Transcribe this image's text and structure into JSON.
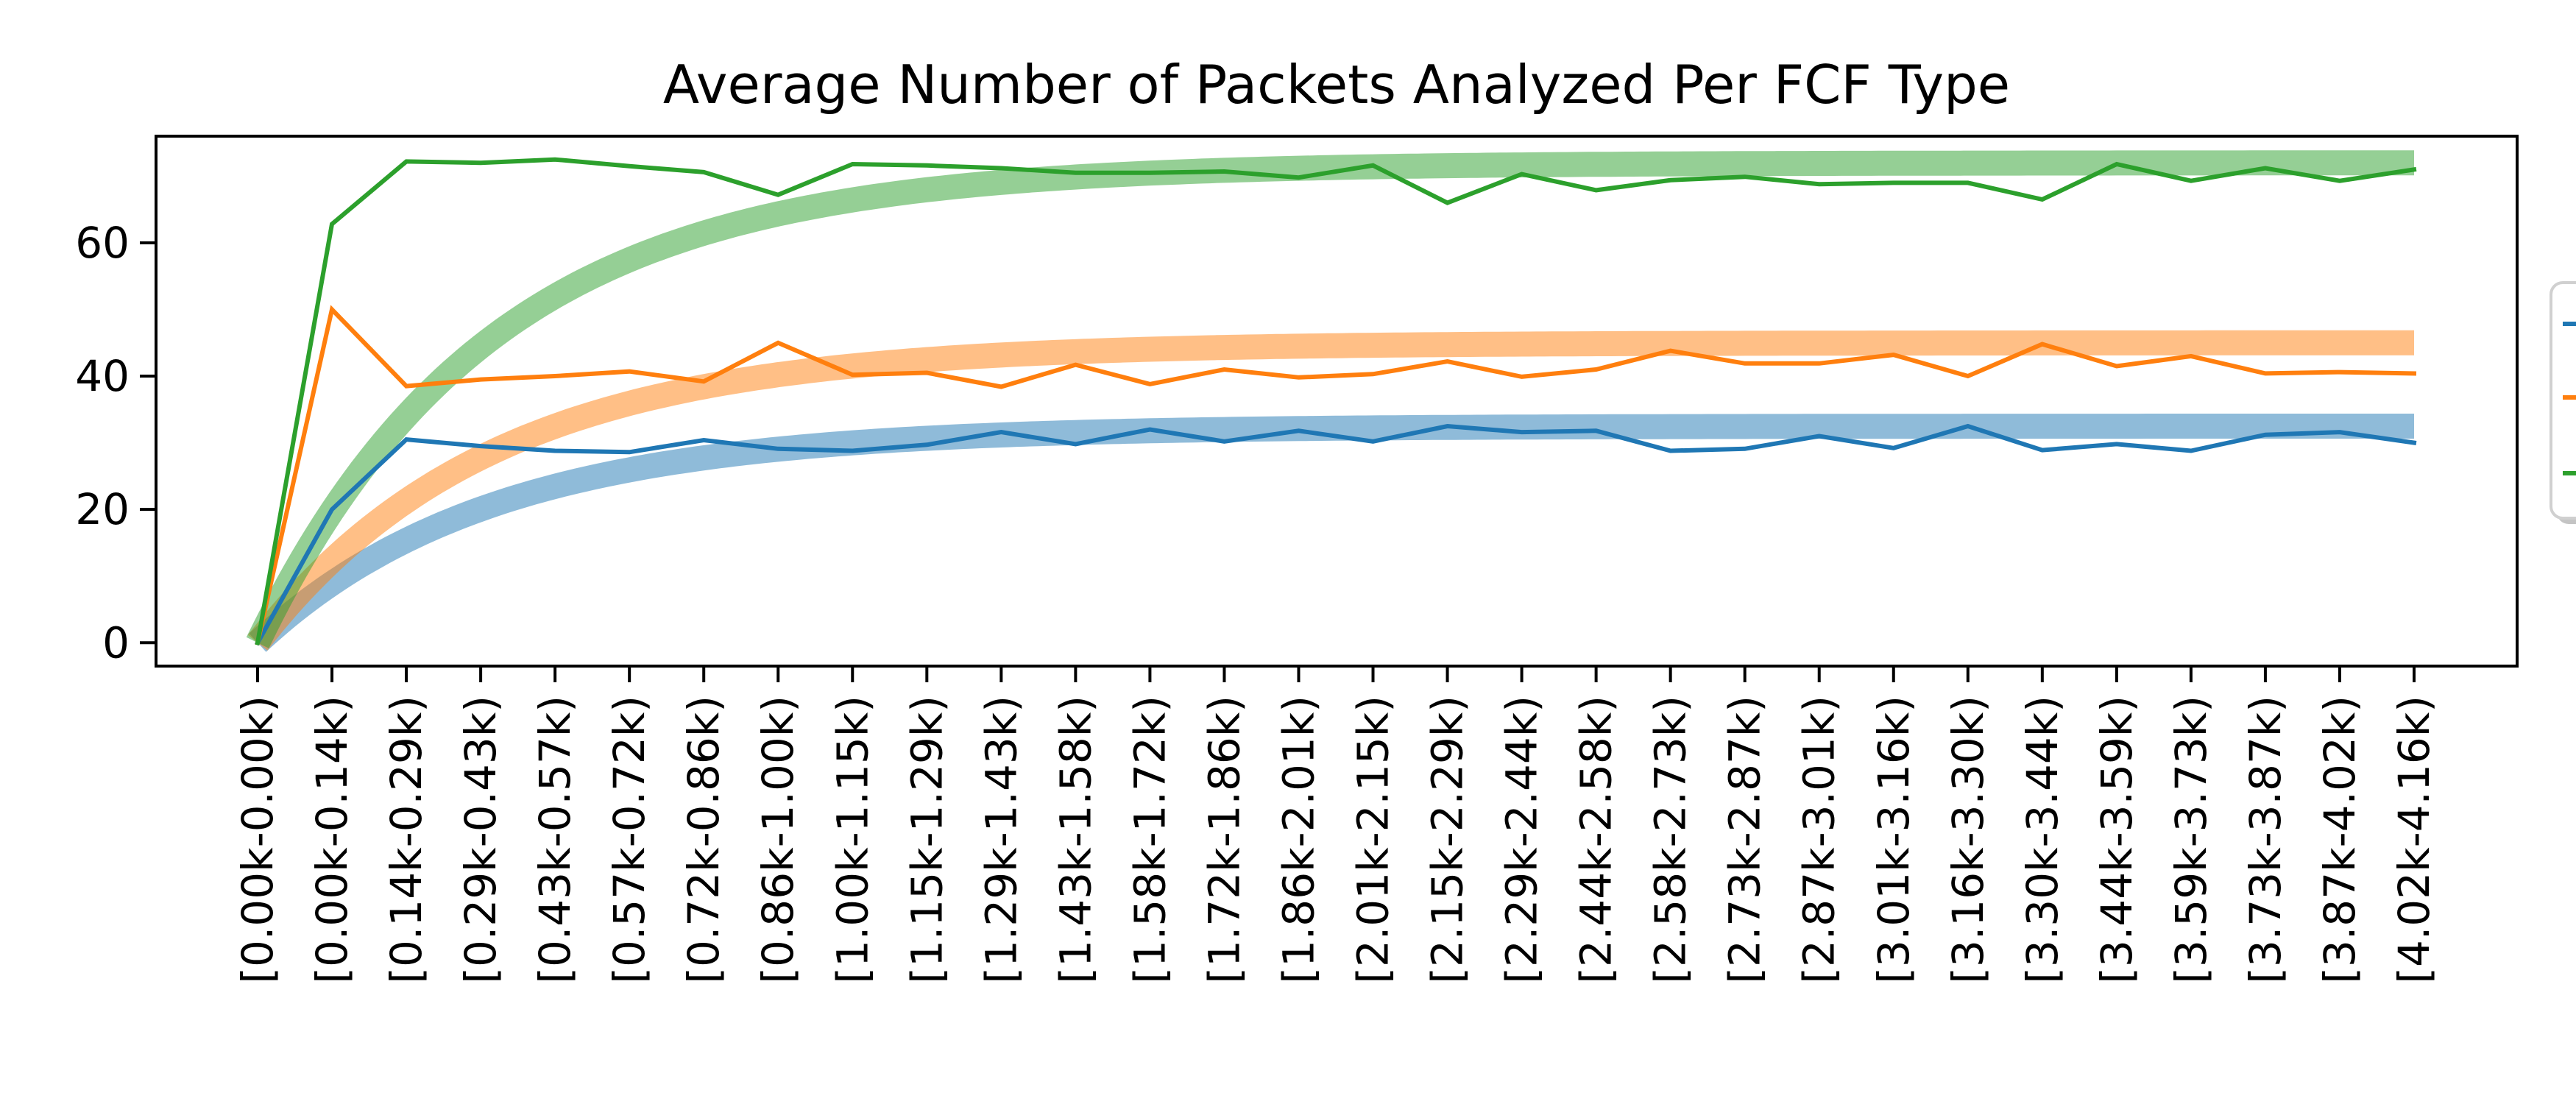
{
  "chart_data": {
    "type": "line",
    "title": "Average Number of Packets Analyzed Per FCF Type",
    "xlabel": "",
    "ylabel": "",
    "ylim": [
      -3.5,
      76
    ],
    "yticks": [
      0,
      20,
      40,
      60
    ],
    "grid": false,
    "legend": {
      "placement": "right, cropped at image edge",
      "entries_visible": 3
    },
    "categories": [
      "[0.00k-0.00k)",
      "[0.00k-0.14k)",
      "[0.14k-0.29k)",
      "[0.29k-0.43k)",
      "[0.43k-0.57k)",
      "[0.57k-0.72k)",
      "[0.72k-0.86k)",
      "[0.86k-1.00k)",
      "[1.00k-1.15k)",
      "[1.15k-1.29k)",
      "[1.29k-1.43k)",
      "[1.43k-1.58k)",
      "[1.58k-1.72k)",
      "[1.72k-1.86k)",
      "[1.86k-2.01k)",
      "[2.01k-2.15k)",
      "[2.15k-2.29k)",
      "[2.29k-2.44k)",
      "[2.44k-2.58k)",
      "[2.58k-2.73k)",
      "[2.73k-2.87k)",
      "[2.87k-3.01k)",
      "[3.01k-3.16k)",
      "[3.16k-3.30k)",
      "[3.30k-3.44k)",
      "[3.44k-3.59k)",
      "[3.59k-3.73k)",
      "[3.73k-3.87k)",
      "[3.87k-4.02k)",
      "[4.02k-4.16k)"
    ],
    "series": [
      {
        "color": "#1f77b4",
        "values": [
          0,
          20,
          30.5,
          29.5,
          28.8,
          28.6,
          30.4,
          29.1,
          28.8,
          29.7,
          31.6,
          29.8,
          32.0,
          30.2,
          31.8,
          30.2,
          32.5,
          31.6,
          31.8,
          28.8,
          29.1,
          31.0,
          29.2,
          32.5,
          28.9,
          29.8,
          28.8,
          31.2,
          31.6,
          30.0
        ]
      },
      {
        "color": "#ff7f0e",
        "values": [
          0,
          50,
          38.5,
          39.5,
          40.0,
          40.7,
          39.2,
          45.0,
          40.2,
          40.5,
          38.4,
          41.7,
          38.8,
          41.0,
          39.8,
          40.3,
          42.2,
          39.9,
          41.0,
          43.8,
          41.9,
          41.9,
          43.2,
          40.0,
          44.8,
          41.5,
          43.0,
          40.4,
          40.6,
          40.4
        ]
      },
      {
        "color": "#2ca02c",
        "values": [
          0,
          62.8,
          72.2,
          72.0,
          72.5,
          71.5,
          70.6,
          67.2,
          71.8,
          71.6,
          71.2,
          70.5,
          70.5,
          70.7,
          69.8,
          71.6,
          66.0,
          70.3,
          67.9,
          69.4,
          69.9,
          68.8,
          69.0,
          69.0,
          66.5,
          71.8,
          69.3,
          71.2,
          69.3,
          71.0
        ]
      }
    ],
    "trend_fits": [
      {
        "color": "#1f77b4",
        "asymptote": 32.5,
        "rate": 0.32
      },
      {
        "color": "#ff7f0e",
        "asymptote": 45.0,
        "rate": 0.32
      },
      {
        "color": "#2ca02c",
        "asymptote": 72.0,
        "rate": 0.32
      }
    ]
  }
}
